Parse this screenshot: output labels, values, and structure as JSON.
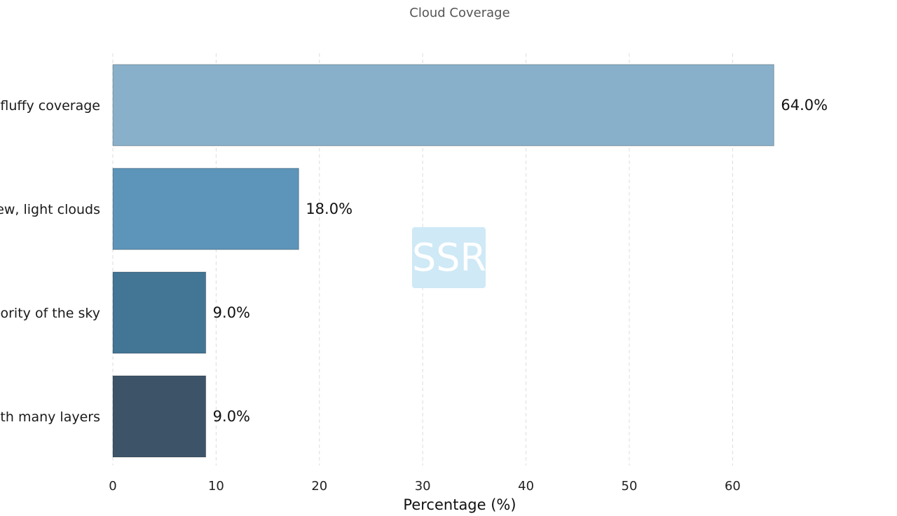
{
  "chart_data": {
    "type": "bar",
    "orientation": "horizontal",
    "title": "Cloud Coverage",
    "xlabel": "Percentage (%)",
    "ylabel": "",
    "xlim": [
      0,
      70
    ],
    "xticks": [
      0,
      10,
      20,
      30,
      40,
      50,
      60
    ],
    "grid": "vertical-dashed",
    "categories": [
      "fluffy coverage",
      "ew, light clouds",
      "ority of the sky",
      "th many layers"
    ],
    "values": [
      64.0,
      18.0,
      9.0,
      9.0
    ],
    "value_labels": [
      "64.0%",
      "18.0%",
      "9.0%",
      "9.0%"
    ],
    "colors": [
      "#89b0ca",
      "#5d94b9",
      "#437595",
      "#3d5468"
    ],
    "watermark": "SSR"
  }
}
